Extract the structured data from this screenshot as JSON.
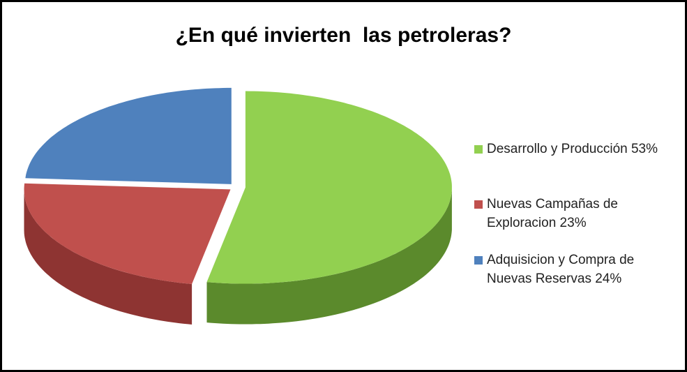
{
  "chart_data": {
    "type": "pie",
    "title": "¿En qué invierten  las petroleras?",
    "categories": [
      "Desarrollo y Producción 53%",
      "Nuevas Campañas de Exploracion 23%",
      "Adquisicion y Compra de Nuevas Reservas 24%"
    ],
    "values": [
      53,
      23,
      24
    ],
    "colors": [
      "#92d050",
      "#c0504d",
      "#4f81bd"
    ],
    "side_colors": [
      "#5b8a2c",
      "#8e3432",
      "#355f93"
    ],
    "legend": "right"
  }
}
